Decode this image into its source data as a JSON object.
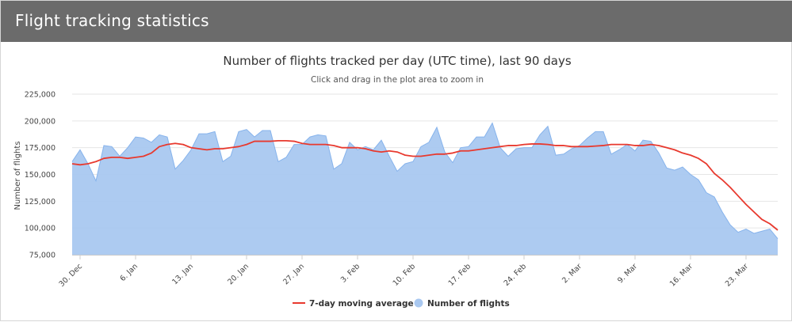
{
  "header": {
    "title": "Flight tracking statistics"
  },
  "colors": {
    "header_bg": "#6b6b6b",
    "area_fill": "#a9c8f0",
    "area_line": "#86b3ec",
    "ma_line": "#e8392e",
    "grid": "#e6e6e6"
  },
  "chart_data": {
    "type": "area",
    "title": "Number of flights tracked per day (UTC time), last 90 days",
    "subtitle": "Click and drag in the plot area to zoom in",
    "ylabel": "Number of flights",
    "ylim": [
      75000,
      225000
    ],
    "y_ticks": [
      75000,
      100000,
      125000,
      150000,
      175000,
      200000,
      225000
    ],
    "y_tick_labels": [
      "75,000",
      "100,000",
      "125,000",
      "150,000",
      "175,000",
      "200,000",
      "225,000"
    ],
    "x_start_date": "29 Dec",
    "x_day_count": 90,
    "x_ticks": [
      {
        "day": 1,
        "label": "30. Dec"
      },
      {
        "day": 8,
        "label": "6. Jan"
      },
      {
        "day": 15,
        "label": "13. Jan"
      },
      {
        "day": 22,
        "label": "20. Jan"
      },
      {
        "day": 29,
        "label": "27. Jan"
      },
      {
        "day": 36,
        "label": "3. Feb"
      },
      {
        "day": 43,
        "label": "10. Feb"
      },
      {
        "day": 50,
        "label": "17. Feb"
      },
      {
        "day": 57,
        "label": "24. Feb"
      },
      {
        "day": 64,
        "label": "2. Mar"
      },
      {
        "day": 71,
        "label": "9. Mar"
      },
      {
        "day": 78,
        "label": "16. Mar"
      },
      {
        "day": 85,
        "label": "23. Mar"
      }
    ],
    "legend": {
      "placement": "bottom-center",
      "ma_label": "7-day moving average",
      "flights_label": "Number of flights"
    },
    "series": [
      {
        "name": "Number of flights",
        "type": "area",
        "values": [
          162000,
          173000,
          160000,
          144000,
          177000,
          176000,
          167000,
          175000,
          185000,
          184000,
          180000,
          187000,
          185000,
          155000,
          163000,
          173000,
          188000,
          188000,
          190000,
          162000,
          167000,
          190000,
          192000,
          185000,
          191000,
          191000,
          162000,
          166000,
          178000,
          178000,
          185000,
          187000,
          186000,
          155000,
          160000,
          180000,
          173000,
          176000,
          173000,
          182000,
          167000,
          153000,
          160000,
          162000,
          176000,
          180000,
          194000,
          171000,
          161000,
          175000,
          176000,
          185000,
          185000,
          198000,
          175000,
          167000,
          174000,
          175000,
          175000,
          187000,
          195000,
          168000,
          169000,
          174000,
          177000,
          184000,
          190000,
          190000,
          169000,
          173000,
          178000,
          172000,
          182000,
          181000,
          170000,
          156000,
          154000,
          157000,
          150000,
          145000,
          133000,
          129000,
          115000,
          103000,
          96000,
          99000,
          95000,
          97000,
          99000,
          90000
        ]
      },
      {
        "name": "7-day moving average",
        "type": "line",
        "values": [
          160000,
          159000,
          160000,
          162000,
          165000,
          166000,
          166000,
          165000,
          166000,
          167000,
          170000,
          176000,
          178000,
          179000,
          178000,
          175000,
          174000,
          173000,
          174000,
          174000,
          175000,
          176000,
          178000,
          181000,
          181000,
          181000,
          181500,
          181500,
          181000,
          179000,
          178000,
          178000,
          178000,
          177000,
          175000,
          175000,
          175000,
          174000,
          172000,
          171000,
          172000,
          171000,
          168000,
          167000,
          167000,
          168000,
          169000,
          169000,
          170000,
          172000,
          172000,
          173000,
          174000,
          175000,
          176000,
          177000,
          177000,
          178000,
          178500,
          178500,
          178000,
          177000,
          177000,
          176000,
          176000,
          176000,
          176500,
          177000,
          178000,
          178000,
          178000,
          177000,
          177000,
          178000,
          177000,
          175000,
          173000,
          170000,
          168000,
          165000,
          160000,
          151000,
          145000,
          138000,
          130000,
          122000,
          115000,
          108000,
          104000,
          98000
        ]
      }
    ]
  }
}
